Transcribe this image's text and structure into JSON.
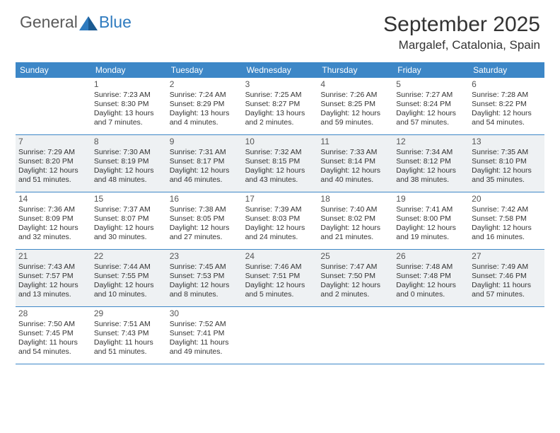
{
  "logo": {
    "general": "General",
    "blue": "Blue"
  },
  "title": "September 2025",
  "location": "Margalef, Catalonia, Spain",
  "colors": {
    "header_bg": "#3d87c7",
    "header_text": "#ffffff",
    "shaded_bg": "#eef1f3",
    "text": "#333333",
    "logo_gray": "#5a5a5a",
    "logo_blue": "#2f7bbf"
  },
  "day_names": [
    "Sunday",
    "Monday",
    "Tuesday",
    "Wednesday",
    "Thursday",
    "Friday",
    "Saturday"
  ],
  "weeks": [
    {
      "shaded": false,
      "cells": [
        {
          "date": "",
          "sunrise": "",
          "sunset": "",
          "daylight": ""
        },
        {
          "date": "1",
          "sunrise": "Sunrise: 7:23 AM",
          "sunset": "Sunset: 8:30 PM",
          "daylight": "Daylight: 13 hours and 7 minutes."
        },
        {
          "date": "2",
          "sunrise": "Sunrise: 7:24 AM",
          "sunset": "Sunset: 8:29 PM",
          "daylight": "Daylight: 13 hours and 4 minutes."
        },
        {
          "date": "3",
          "sunrise": "Sunrise: 7:25 AM",
          "sunset": "Sunset: 8:27 PM",
          "daylight": "Daylight: 13 hours and 2 minutes."
        },
        {
          "date": "4",
          "sunrise": "Sunrise: 7:26 AM",
          "sunset": "Sunset: 8:25 PM",
          "daylight": "Daylight: 12 hours and 59 minutes."
        },
        {
          "date": "5",
          "sunrise": "Sunrise: 7:27 AM",
          "sunset": "Sunset: 8:24 PM",
          "daylight": "Daylight: 12 hours and 57 minutes."
        },
        {
          "date": "6",
          "sunrise": "Sunrise: 7:28 AM",
          "sunset": "Sunset: 8:22 PM",
          "daylight": "Daylight: 12 hours and 54 minutes."
        }
      ]
    },
    {
      "shaded": true,
      "cells": [
        {
          "date": "7",
          "sunrise": "Sunrise: 7:29 AM",
          "sunset": "Sunset: 8:20 PM",
          "daylight": "Daylight: 12 hours and 51 minutes."
        },
        {
          "date": "8",
          "sunrise": "Sunrise: 7:30 AM",
          "sunset": "Sunset: 8:19 PM",
          "daylight": "Daylight: 12 hours and 48 minutes."
        },
        {
          "date": "9",
          "sunrise": "Sunrise: 7:31 AM",
          "sunset": "Sunset: 8:17 PM",
          "daylight": "Daylight: 12 hours and 46 minutes."
        },
        {
          "date": "10",
          "sunrise": "Sunrise: 7:32 AM",
          "sunset": "Sunset: 8:15 PM",
          "daylight": "Daylight: 12 hours and 43 minutes."
        },
        {
          "date": "11",
          "sunrise": "Sunrise: 7:33 AM",
          "sunset": "Sunset: 8:14 PM",
          "daylight": "Daylight: 12 hours and 40 minutes."
        },
        {
          "date": "12",
          "sunrise": "Sunrise: 7:34 AM",
          "sunset": "Sunset: 8:12 PM",
          "daylight": "Daylight: 12 hours and 38 minutes."
        },
        {
          "date": "13",
          "sunrise": "Sunrise: 7:35 AM",
          "sunset": "Sunset: 8:10 PM",
          "daylight": "Daylight: 12 hours and 35 minutes."
        }
      ]
    },
    {
      "shaded": false,
      "cells": [
        {
          "date": "14",
          "sunrise": "Sunrise: 7:36 AM",
          "sunset": "Sunset: 8:09 PM",
          "daylight": "Daylight: 12 hours and 32 minutes."
        },
        {
          "date": "15",
          "sunrise": "Sunrise: 7:37 AM",
          "sunset": "Sunset: 8:07 PM",
          "daylight": "Daylight: 12 hours and 30 minutes."
        },
        {
          "date": "16",
          "sunrise": "Sunrise: 7:38 AM",
          "sunset": "Sunset: 8:05 PM",
          "daylight": "Daylight: 12 hours and 27 minutes."
        },
        {
          "date": "17",
          "sunrise": "Sunrise: 7:39 AM",
          "sunset": "Sunset: 8:03 PM",
          "daylight": "Daylight: 12 hours and 24 minutes."
        },
        {
          "date": "18",
          "sunrise": "Sunrise: 7:40 AM",
          "sunset": "Sunset: 8:02 PM",
          "daylight": "Daylight: 12 hours and 21 minutes."
        },
        {
          "date": "19",
          "sunrise": "Sunrise: 7:41 AM",
          "sunset": "Sunset: 8:00 PM",
          "daylight": "Daylight: 12 hours and 19 minutes."
        },
        {
          "date": "20",
          "sunrise": "Sunrise: 7:42 AM",
          "sunset": "Sunset: 7:58 PM",
          "daylight": "Daylight: 12 hours and 16 minutes."
        }
      ]
    },
    {
      "shaded": true,
      "cells": [
        {
          "date": "21",
          "sunrise": "Sunrise: 7:43 AM",
          "sunset": "Sunset: 7:57 PM",
          "daylight": "Daylight: 12 hours and 13 minutes."
        },
        {
          "date": "22",
          "sunrise": "Sunrise: 7:44 AM",
          "sunset": "Sunset: 7:55 PM",
          "daylight": "Daylight: 12 hours and 10 minutes."
        },
        {
          "date": "23",
          "sunrise": "Sunrise: 7:45 AM",
          "sunset": "Sunset: 7:53 PM",
          "daylight": "Daylight: 12 hours and 8 minutes."
        },
        {
          "date": "24",
          "sunrise": "Sunrise: 7:46 AM",
          "sunset": "Sunset: 7:51 PM",
          "daylight": "Daylight: 12 hours and 5 minutes."
        },
        {
          "date": "25",
          "sunrise": "Sunrise: 7:47 AM",
          "sunset": "Sunset: 7:50 PM",
          "daylight": "Daylight: 12 hours and 2 minutes."
        },
        {
          "date": "26",
          "sunrise": "Sunrise: 7:48 AM",
          "sunset": "Sunset: 7:48 PM",
          "daylight": "Daylight: 12 hours and 0 minutes."
        },
        {
          "date": "27",
          "sunrise": "Sunrise: 7:49 AM",
          "sunset": "Sunset: 7:46 PM",
          "daylight": "Daylight: 11 hours and 57 minutes."
        }
      ]
    },
    {
      "shaded": false,
      "cells": [
        {
          "date": "28",
          "sunrise": "Sunrise: 7:50 AM",
          "sunset": "Sunset: 7:45 PM",
          "daylight": "Daylight: 11 hours and 54 minutes."
        },
        {
          "date": "29",
          "sunrise": "Sunrise: 7:51 AM",
          "sunset": "Sunset: 7:43 PM",
          "daylight": "Daylight: 11 hours and 51 minutes."
        },
        {
          "date": "30",
          "sunrise": "Sunrise: 7:52 AM",
          "sunset": "Sunset: 7:41 PM",
          "daylight": "Daylight: 11 hours and 49 minutes."
        },
        {
          "date": "",
          "sunrise": "",
          "sunset": "",
          "daylight": ""
        },
        {
          "date": "",
          "sunrise": "",
          "sunset": "",
          "daylight": ""
        },
        {
          "date": "",
          "sunrise": "",
          "sunset": "",
          "daylight": ""
        },
        {
          "date": "",
          "sunrise": "",
          "sunset": "",
          "daylight": ""
        }
      ]
    }
  ]
}
